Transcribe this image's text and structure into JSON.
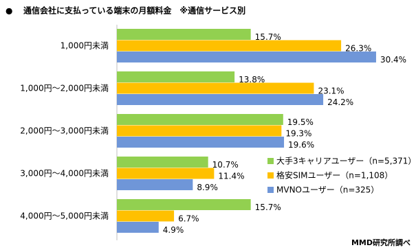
{
  "chart_data": {
    "type": "bar",
    "orientation": "horizontal",
    "bullet": "●",
    "title": "通信会社に支払っている端末の月額料金　※通信サービス別",
    "source": "MMD研究所調べ",
    "categories": [
      "1,000円未満",
      "1,000円～2,000円未満",
      "2,000円～3,000円未満",
      "3,000円～4,000円未満",
      "4,000円～5,000円未満"
    ],
    "series": [
      {
        "name": "大手3キャリアユーザー（n=5,371）",
        "color": "#92d050",
        "values": [
          15.7,
          13.8,
          19.5,
          10.7,
          15.7
        ],
        "value_labels": [
          "15.7%",
          "13.8%",
          "19.5%",
          "10.7%",
          "15.7%"
        ]
      },
      {
        "name": "格安SIMユーザー（n=1,108）",
        "color": "#ffc000",
        "values": [
          26.3,
          23.1,
          19.3,
          11.4,
          6.7
        ],
        "value_labels": [
          "26.3%",
          "23.1%",
          "19.3%",
          "11.4%",
          "6.7%"
        ]
      },
      {
        "name": "MVNOユーザー（n=325）",
        "color": "#6f96d8",
        "values": [
          30.4,
          24.2,
          19.6,
          8.9,
          4.9
        ],
        "value_labels": [
          "30.4%",
          "24.2%",
          "19.6%",
          "8.9%",
          "4.9%"
        ]
      }
    ],
    "xlim": [
      0,
      35
    ]
  }
}
